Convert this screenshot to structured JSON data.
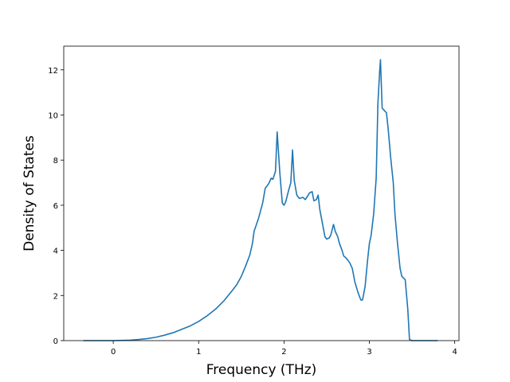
{
  "chart_data": {
    "type": "line",
    "title": "",
    "xlabel": "Frequency (THz)",
    "ylabel": "Density of States",
    "xlim": [
      -0.58,
      4.05
    ],
    "ylim": [
      0,
      13.05
    ],
    "x_ticks": [
      0,
      1,
      2,
      3,
      4
    ],
    "y_ticks": [
      0,
      2,
      4,
      6,
      8,
      10,
      12
    ],
    "grid": false,
    "legend": "none",
    "series": [
      {
        "color": "#1f77b4",
        "points": [
          [
            -0.35,
            0.0
          ],
          [
            0.0,
            0.0
          ],
          [
            0.2,
            0.02
          ],
          [
            0.3,
            0.05
          ],
          [
            0.4,
            0.09
          ],
          [
            0.5,
            0.15
          ],
          [
            0.6,
            0.24
          ],
          [
            0.7,
            0.35
          ],
          [
            0.8,
            0.5
          ],
          [
            0.9,
            0.65
          ],
          [
            1.0,
            0.85
          ],
          [
            1.1,
            1.1
          ],
          [
            1.2,
            1.4
          ],
          [
            1.3,
            1.78
          ],
          [
            1.4,
            2.25
          ],
          [
            1.45,
            2.5
          ],
          [
            1.5,
            2.85
          ],
          [
            1.55,
            3.3
          ],
          [
            1.6,
            3.8
          ],
          [
            1.63,
            4.3
          ],
          [
            1.65,
            4.85
          ],
          [
            1.7,
            5.4
          ],
          [
            1.75,
            6.1
          ],
          [
            1.78,
            6.75
          ],
          [
            1.82,
            6.95
          ],
          [
            1.85,
            7.2
          ],
          [
            1.87,
            7.15
          ],
          [
            1.9,
            7.5
          ],
          [
            1.92,
            9.25
          ],
          [
            1.95,
            7.5
          ],
          [
            1.98,
            6.1
          ],
          [
            2.0,
            6.0
          ],
          [
            2.02,
            6.15
          ],
          [
            2.05,
            6.6
          ],
          [
            2.08,
            7.0
          ],
          [
            2.1,
            8.45
          ],
          [
            2.12,
            7.1
          ],
          [
            2.15,
            6.45
          ],
          [
            2.18,
            6.3
          ],
          [
            2.22,
            6.35
          ],
          [
            2.25,
            6.25
          ],
          [
            2.3,
            6.55
          ],
          [
            2.33,
            6.6
          ],
          [
            2.35,
            6.2
          ],
          [
            2.38,
            6.25
          ],
          [
            2.4,
            6.45
          ],
          [
            2.42,
            5.8
          ],
          [
            2.45,
            5.2
          ],
          [
            2.48,
            4.6
          ],
          [
            2.5,
            4.5
          ],
          [
            2.53,
            4.55
          ],
          [
            2.55,
            4.7
          ],
          [
            2.58,
            5.15
          ],
          [
            2.6,
            4.85
          ],
          [
            2.63,
            4.6
          ],
          [
            2.65,
            4.3
          ],
          [
            2.68,
            4.0
          ],
          [
            2.7,
            3.75
          ],
          [
            2.73,
            3.65
          ],
          [
            2.77,
            3.45
          ],
          [
            2.8,
            3.2
          ],
          [
            2.83,
            2.6
          ],
          [
            2.87,
            2.1
          ],
          [
            2.9,
            1.8
          ],
          [
            2.92,
            1.8
          ],
          [
            2.95,
            2.4
          ],
          [
            2.98,
            3.6
          ],
          [
            3.0,
            4.3
          ],
          [
            3.02,
            4.65
          ],
          [
            3.05,
            5.6
          ],
          [
            3.08,
            7.2
          ],
          [
            3.1,
            10.5
          ],
          [
            3.12,
            11.9
          ],
          [
            3.13,
            12.45
          ],
          [
            3.15,
            10.3
          ],
          [
            3.2,
            10.1
          ],
          [
            3.22,
            9.4
          ],
          [
            3.25,
            8.1
          ],
          [
            3.28,
            7.0
          ],
          [
            3.3,
            5.6
          ],
          [
            3.33,
            4.3
          ],
          [
            3.36,
            3.2
          ],
          [
            3.38,
            2.85
          ],
          [
            3.42,
            2.7
          ],
          [
            3.45,
            1.4
          ],
          [
            3.47,
            0.05
          ],
          [
            3.5,
            0.0
          ],
          [
            3.6,
            0.0
          ],
          [
            3.8,
            0.0
          ]
        ]
      }
    ]
  }
}
